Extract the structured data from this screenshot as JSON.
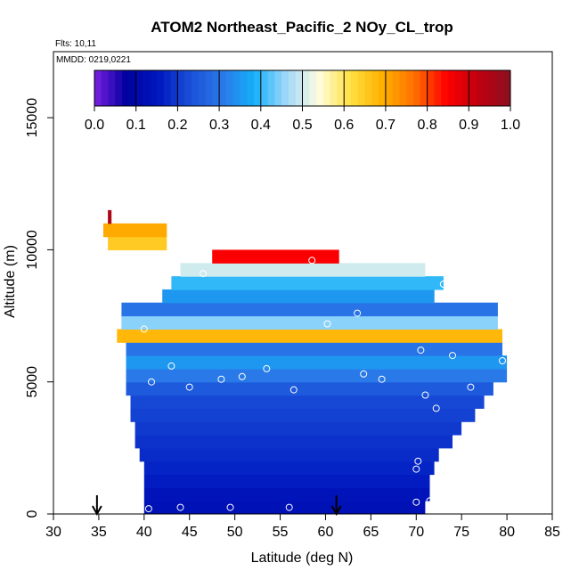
{
  "chart_data": {
    "type": "heatmap",
    "title": "ATOM2 Northeast_Pacific_2 NOy_CL_trop",
    "flights_text": "Flts: 10,11",
    "mmdd_text": "MMDD: 0219,0221",
    "xlabel": "Latitude (deg N)",
    "ylabel": "Altitude (m)",
    "xlim": [
      30,
      85
    ],
    "ylim": [
      0,
      17500
    ],
    "x_ticks": [
      30,
      35,
      40,
      45,
      50,
      55,
      60,
      65,
      70,
      75,
      80,
      85
    ],
    "x_tick_labels": [
      "30",
      "35",
      "40",
      "45",
      "50",
      "55",
      "60",
      "65",
      "70",
      "75",
      "80",
      "85"
    ],
    "y_ticks": [
      0,
      5000,
      10000,
      15000
    ],
    "y_tick_labels": [
      "0",
      "5000",
      "10000",
      "15000"
    ],
    "colorbar": {
      "range": [
        0,
        1
      ],
      "ticks": [
        0.0,
        0.1,
        0.2,
        0.3,
        0.4,
        0.5,
        0.6,
        0.7,
        0.8,
        0.9,
        1.0
      ],
      "tick_labels": [
        "0.0",
        "0.1",
        "0.2",
        "0.3",
        "0.4",
        "0.5",
        "0.6",
        "0.7",
        "0.8",
        "0.9",
        "1.0"
      ],
      "colors": [
        "#7b1fe0",
        "#0000a0",
        "#0018c0",
        "#1a50d8",
        "#2a78e8",
        "#14b0f8",
        "#a0d8fa",
        "#fffde0",
        "#ffe040",
        "#ffb000",
        "#ff7000",
        "#ff0000",
        "#c00010",
        "#8b1020"
      ]
    },
    "arrows_at_latitude": [
      34.8,
      61.2
    ],
    "layers": [
      {
        "z0": 0,
        "z1": 500,
        "x0": 40.0,
        "x1": 71.0,
        "v": 0.13
      },
      {
        "z0": 500,
        "z1": 1000,
        "x0": 40.0,
        "x1": 71.5,
        "v": 0.14
      },
      {
        "z0": 1000,
        "z1": 1500,
        "x0": 40.0,
        "x1": 71.5,
        "v": 0.16
      },
      {
        "z0": 1500,
        "z1": 2000,
        "x0": 40.0,
        "x1": 72.0,
        "v": 0.17
      },
      {
        "z0": 2000,
        "z1": 2500,
        "x0": 39.5,
        "x1": 72.5,
        "v": 0.18
      },
      {
        "z0": 2500,
        "z1": 3000,
        "x0": 39.0,
        "x1": 74.0,
        "v": 0.19
      },
      {
        "z0": 3000,
        "z1": 3500,
        "x0": 39.0,
        "x1": 75.0,
        "v": 0.2
      },
      {
        "z0": 3500,
        "z1": 4000,
        "x0": 38.5,
        "x1": 76.5,
        "v": 0.21
      },
      {
        "z0": 4000,
        "z1": 4500,
        "x0": 38.5,
        "x1": 77.5,
        "v": 0.22
      },
      {
        "z0": 4500,
        "z1": 5000,
        "x0": 38.0,
        "x1": 78.5,
        "v": 0.25
      },
      {
        "z0": 5000,
        "z1": 5500,
        "x0": 38.0,
        "x1": 80.0,
        "v": 0.31
      },
      {
        "z0": 5500,
        "z1": 6000,
        "x0": 38.0,
        "x1": 80.0,
        "v": 0.35
      },
      {
        "z0": 6000,
        "z1": 6500,
        "x0": 38.0,
        "x1": 79.5,
        "v": 0.3
      },
      {
        "z0": 6500,
        "z1": 7000,
        "x0": 37.0,
        "x1": 79.5,
        "v": 0.68
      },
      {
        "z0": 7000,
        "z1": 7500,
        "x0": 37.5,
        "x1": 79.0,
        "v": 0.45
      },
      {
        "z0": 7500,
        "z1": 8000,
        "x0": 37.5,
        "x1": 79.0,
        "v": 0.3
      },
      {
        "z0": 8000,
        "z1": 8500,
        "x0": 42.0,
        "x1": 72.0,
        "v": 0.35
      },
      {
        "z0": 8500,
        "z1": 9000,
        "x0": 43.0,
        "x1": 73.0,
        "v": 0.4
      },
      {
        "z0": 9000,
        "z1": 9500,
        "x0": 44.0,
        "x1": 71.0,
        "v": 0.5
      },
      {
        "z0": 9500,
        "z1": 10000,
        "x0": 47.5,
        "x1": 61.5,
        "v": 0.85
      },
      {
        "z0": 10000,
        "z1": 10500,
        "x0": 36.0,
        "x1": 42.5,
        "v": 0.65
      },
      {
        "z0": 10500,
        "z1": 11000,
        "x0": 35.5,
        "x1": 42.5,
        "v": 0.7
      },
      {
        "z0": 11000,
        "z1": 11500,
        "x0": 36.0,
        "x1": 36.4,
        "v": 0.95
      }
    ],
    "points": [
      {
        "lat": 40.5,
        "alt": 200
      },
      {
        "lat": 44.0,
        "alt": 250
      },
      {
        "lat": 49.5,
        "alt": 250
      },
      {
        "lat": 56.0,
        "alt": 250
      },
      {
        "lat": 70.0,
        "alt": 450
      },
      {
        "lat": 71.5,
        "alt": 500
      },
      {
        "lat": 70.0,
        "alt": 1700
      },
      {
        "lat": 70.2,
        "alt": 2000
      },
      {
        "lat": 72.2,
        "alt": 4000
      },
      {
        "lat": 71.0,
        "alt": 4500
      },
      {
        "lat": 76.0,
        "alt": 4800
      },
      {
        "lat": 40.8,
        "alt": 5000
      },
      {
        "lat": 45.0,
        "alt": 4800
      },
      {
        "lat": 48.5,
        "alt": 5100
      },
      {
        "lat": 50.8,
        "alt": 5200
      },
      {
        "lat": 53.5,
        "alt": 5500
      },
      {
        "lat": 56.5,
        "alt": 4700
      },
      {
        "lat": 64.2,
        "alt": 5300
      },
      {
        "lat": 66.2,
        "alt": 5100
      },
      {
        "lat": 43.0,
        "alt": 5600
      },
      {
        "lat": 79.5,
        "alt": 5800
      },
      {
        "lat": 74.0,
        "alt": 6000
      },
      {
        "lat": 70.5,
        "alt": 6200
      },
      {
        "lat": 40.0,
        "alt": 7000
      },
      {
        "lat": 60.2,
        "alt": 7200
      },
      {
        "lat": 63.5,
        "alt": 7600
      },
      {
        "lat": 46.5,
        "alt": 9100
      },
      {
        "lat": 58.5,
        "alt": 9600
      },
      {
        "lat": 73.0,
        "alt": 8700
      }
    ]
  }
}
